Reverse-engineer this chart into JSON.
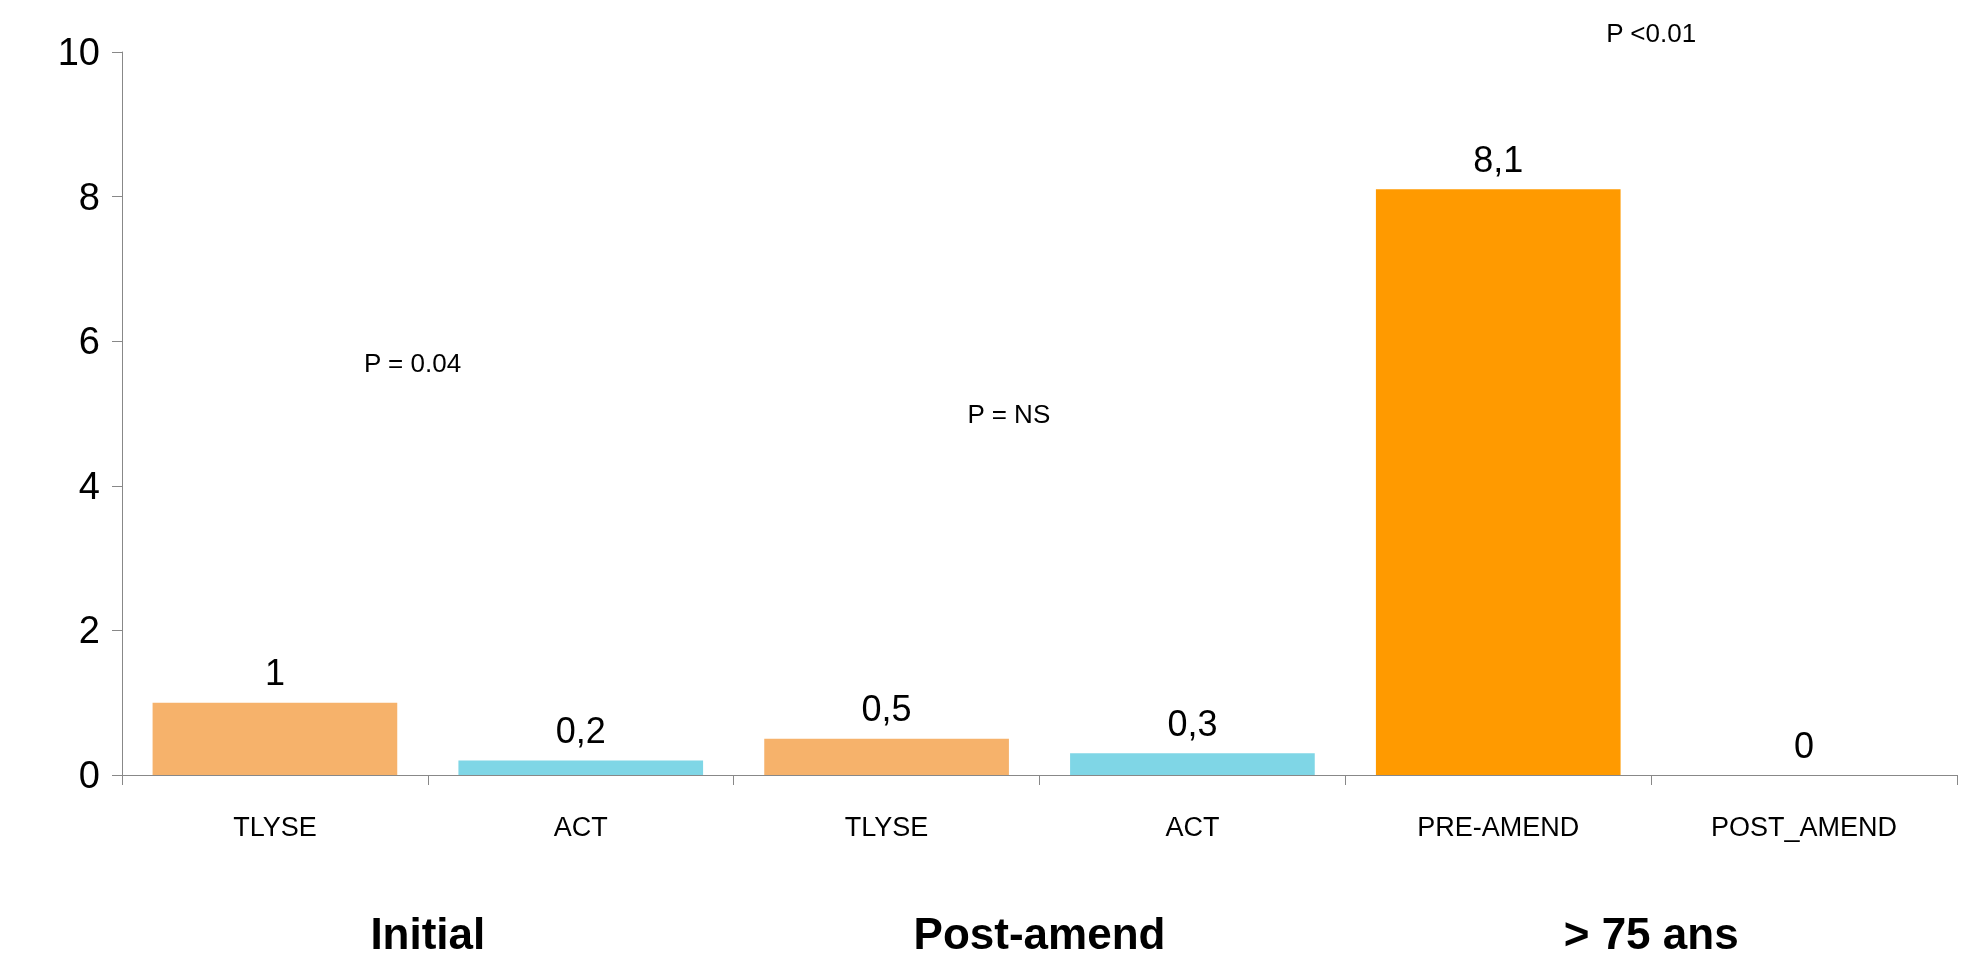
{
  "chart_data": {
    "type": "bar",
    "categories": [
      "TLYSE",
      "ACT",
      "TLYSE",
      "ACT",
      "PRE-AMEND",
      "POST_AMEND"
    ],
    "values": [
      1,
      0.2,
      0.5,
      0.3,
      8.1,
      0
    ],
    "colors": [
      "#f6b26b",
      "#7fd6e6",
      "#f6b26b",
      "#7fd6e6",
      "#ff9a00",
      "#ff9a00"
    ],
    "value_labels": [
      "1",
      "0,2",
      "0,5",
      "0,3",
      "8,1",
      "0"
    ],
    "ylim": [
      0,
      10
    ],
    "yticks": [
      0,
      2,
      4,
      6,
      8,
      10
    ],
    "grid": false,
    "annotations": [
      "P = 0.04",
      "P = NS",
      "P <0.01",
      "Initial",
      "Post-amend",
      "> 75 ans"
    ]
  }
}
